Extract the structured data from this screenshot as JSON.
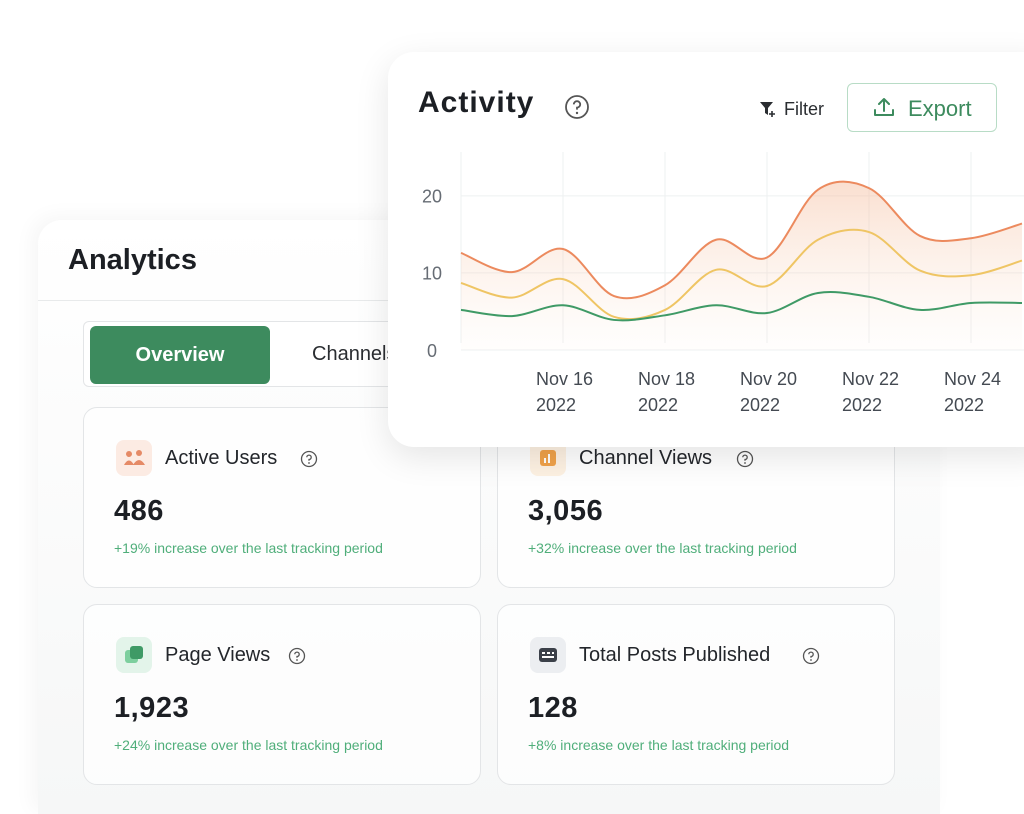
{
  "analytics": {
    "title": "Analytics",
    "tabs": [
      "Overview",
      "Channels"
    ]
  },
  "stats": [
    {
      "label": "Active Users",
      "value": "486",
      "change": "+19% increase over the last tracking period"
    },
    {
      "label": "Channel Views",
      "value": "3,056",
      "change": "+32% increase over the last tracking period"
    },
    {
      "label": "Page Views",
      "value": "1,923",
      "change": "+24% increase over the last tracking period"
    },
    {
      "label": "Total Posts Published",
      "value": "128",
      "change": "+8% increase over the last tracking period"
    }
  ],
  "activity": {
    "filter": "Filter",
    "export": "Export"
  },
  "chart_data": {
    "type": "line",
    "title": "Activity",
    "categories": [
      null,
      null,
      "Nov 16 2022",
      null,
      "Nov 18 2022",
      null,
      "Nov 20 2022",
      null,
      "Nov 22 2022",
      null,
      "Nov 24 2022",
      null
    ],
    "series": [
      {
        "color": "#ec8a5e",
        "values": [
          12.6,
          10.1,
          13.1,
          7,
          8.4,
          14.3,
          12,
          20.8,
          21,
          14.8,
          14.5,
          16.4
        ]
      },
      {
        "color": "#efc564",
        "values": [
          8.7,
          6.8,
          9.2,
          4.3,
          5.2,
          10.4,
          8.3,
          14.3,
          15.3,
          10.3,
          9.7,
          11.6
        ]
      },
      {
        "color": "#3f9a66",
        "values": [
          5.2,
          4.4,
          5.8,
          3.9,
          4.5,
          5.8,
          4.8,
          7.4,
          6.9,
          5.2,
          6.1,
          6.1
        ]
      }
    ],
    "ylim": [
      0,
      24
    ],
    "yticks": [
      0,
      10,
      20
    ],
    "grid": true
  }
}
